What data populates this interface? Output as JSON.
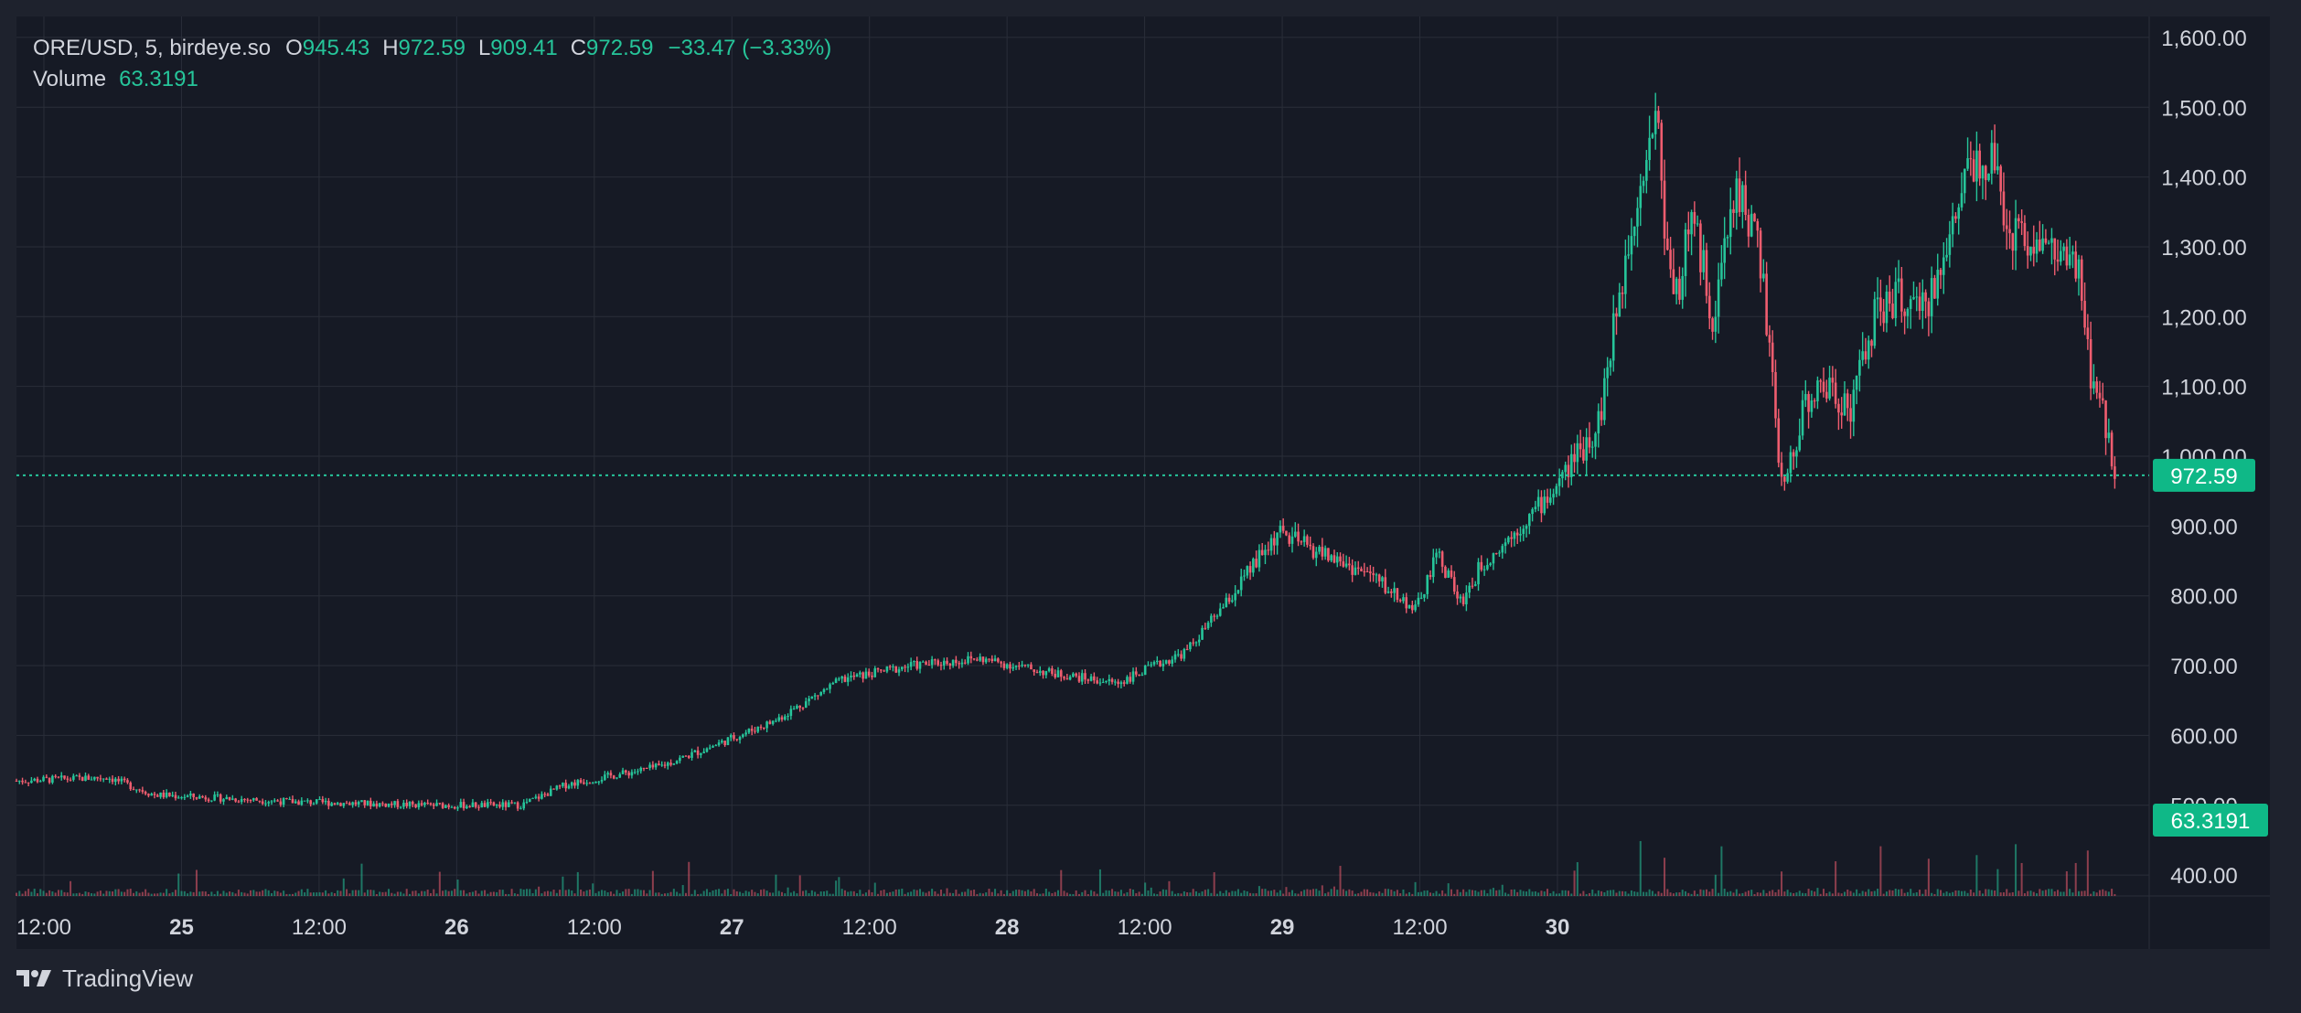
{
  "header": {
    "symbol": "ORE/USD, 5, birdeye.so",
    "open_label": "O",
    "open_value": "945.43",
    "high_label": "H",
    "high_value": "972.59",
    "low_label": "L",
    "low_value": "909.41",
    "close_label": "C",
    "close_value": "972.59",
    "change": "−33.47 (−3.33%)",
    "volume_label": "Volume",
    "volume_value": "63.3191"
  },
  "footer": {
    "brand": "TradingView",
    "logo_icon": "tradingview-logo-icon"
  },
  "colors": {
    "background": "#1e222d",
    "pane": "#161a25",
    "grid": "#2a2e39",
    "text": "#d1d4dc",
    "up": "#26c59a",
    "down": "#ef5d6f",
    "badge": "#0fb887"
  },
  "chart_data": {
    "type": "candlestick",
    "symbol": "ORE/USD",
    "interval": "5",
    "x_tick_labels": [
      "12:00",
      "25",
      "12:00",
      "26",
      "12:00",
      "27",
      "12:00",
      "28",
      "12:00",
      "29",
      "12:00",
      "30"
    ],
    "y_tick_labels": [
      "400.00",
      "500.00",
      "600.00",
      "700.00",
      "800.00",
      "900.00",
      "1,000.00",
      "1,100.00",
      "1,200.00",
      "1,300.00",
      "1,400.00",
      "1,500.00",
      "1,600.00"
    ],
    "ylim": [
      370,
      1630
    ],
    "last_price": 972.59,
    "last_price_label": "972.59",
    "last_volume_label": "63.3191",
    "grid": true,
    "price_path_hours_values": [
      [
        0,
        535
      ],
      [
        8,
        540
      ],
      [
        12,
        515
      ],
      [
        24,
        505
      ],
      [
        36,
        500
      ],
      [
        44,
        500
      ],
      [
        48,
        530
      ],
      [
        56,
        555
      ],
      [
        60,
        580
      ],
      [
        66,
        620
      ],
      [
        72,
        680
      ],
      [
        78,
        700
      ],
      [
        84,
        710
      ],
      [
        90,
        690
      ],
      [
        96,
        675
      ],
      [
        102,
        720
      ],
      [
        106,
        800
      ],
      [
        110,
        890
      ],
      [
        114,
        860
      ],
      [
        118,
        830
      ],
      [
        122,
        780
      ],
      [
        124,
        860
      ],
      [
        126,
        790
      ],
      [
        128,
        850
      ],
      [
        130,
        880
      ],
      [
        134,
        950
      ],
      [
        138,
        1050
      ],
      [
        141,
        1350
      ],
      [
        143,
        1500
      ],
      [
        144,
        1280
      ],
      [
        145,
        1240
      ],
      [
        146,
        1350
      ],
      [
        148,
        1200
      ],
      [
        150,
        1390
      ],
      [
        152,
        1300
      ],
      [
        154,
        950
      ],
      [
        156,
        1080
      ],
      [
        158,
        1100
      ],
      [
        160,
        1070
      ],
      [
        162,
        1200
      ],
      [
        164,
        1230
      ],
      [
        166,
        1200
      ],
      [
        168,
        1270
      ],
      [
        170,
        1420
      ],
      [
        172,
        1430
      ],
      [
        174,
        1320
      ],
      [
        176,
        1310
      ],
      [
        178,
        1290
      ],
      [
        180,
        1250
      ],
      [
        181,
        1100
      ],
      [
        182,
        1060
      ],
      [
        183,
        970
      ]
    ]
  }
}
